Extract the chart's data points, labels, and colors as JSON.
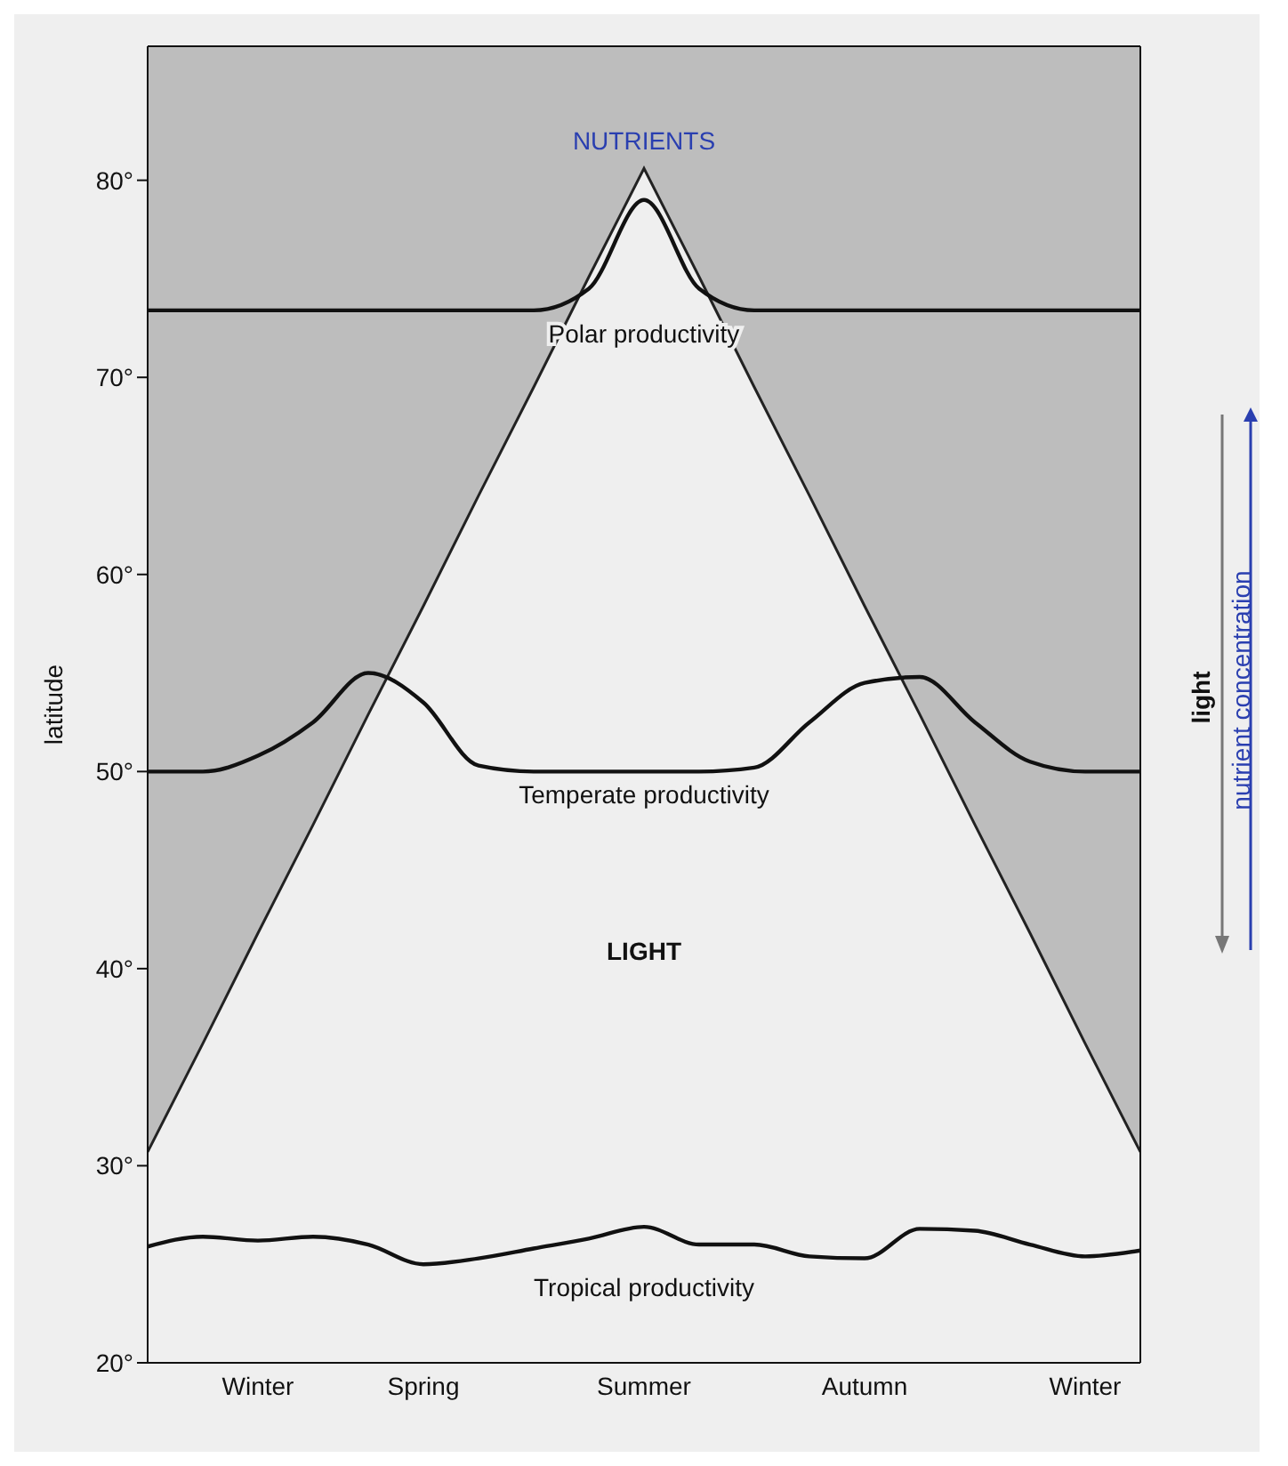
{
  "chart_data": {
    "type": "line",
    "ylabel": "latitude",
    "categories": [
      null,
      null,
      "Winter",
      null,
      null,
      "Spring",
      null,
      null,
      null,
      "Summer",
      null,
      null,
      null,
      "Autumn",
      null,
      null,
      null,
      "Winter",
      null
    ],
    "ylim": [
      20,
      86.8
    ],
    "yticks": [
      {
        "value": 20,
        "label": "20°"
      },
      {
        "value": 30,
        "label": "30°"
      },
      {
        "value": 40,
        "label": "40°"
      },
      {
        "value": 50,
        "label": "50°"
      },
      {
        "value": 60,
        "label": "60°"
      },
      {
        "value": 70,
        "label": "70°"
      },
      {
        "value": 80,
        "label": "80°"
      }
    ],
    "grid": false,
    "legend": false,
    "marker": "none",
    "series": [
      {
        "type": "area",
        "color": "#222222",
        "values": [
          30.7,
          36.2,
          41.8,
          47.3,
          52.9,
          58.4,
          64,
          69.5,
          75.1,
          80.6,
          75.1,
          69.5,
          64,
          58.4,
          52.9,
          47.3,
          41.8,
          36.2,
          30.7
        ]
      },
      {
        "name": "Polar productivity",
        "color": "#111111",
        "values": [
          73.4,
          73.4,
          73.4,
          73.4,
          73.4,
          73.4,
          73.4,
          73.4,
          74.5,
          79,
          74.5,
          73.4,
          73.4,
          73.4,
          73.4,
          73.4,
          73.4,
          73.4,
          73.4
        ]
      },
      {
        "name": "Temperate productivity",
        "color": "#111111",
        "values": [
          50,
          50,
          50.8,
          52.5,
          55,
          53.5,
          50.3,
          50,
          50,
          50,
          50,
          50.2,
          52.5,
          54.5,
          54.8,
          52.5,
          50.5,
          50,
          50
        ]
      },
      {
        "name": "Tropical productivity",
        "color": "#111111",
        "values": [
          25.9,
          26.4,
          26.2,
          26.4,
          26,
          25,
          25.3,
          25.8,
          26.3,
          26.9,
          26,
          26,
          25.4,
          25.3,
          26.8,
          26.7,
          26,
          25.4,
          25.7
        ]
      }
    ],
    "annotations": [
      "NUTRIENTS",
      "LIGHT",
      "light",
      "nutrient concentration"
    ]
  }
}
